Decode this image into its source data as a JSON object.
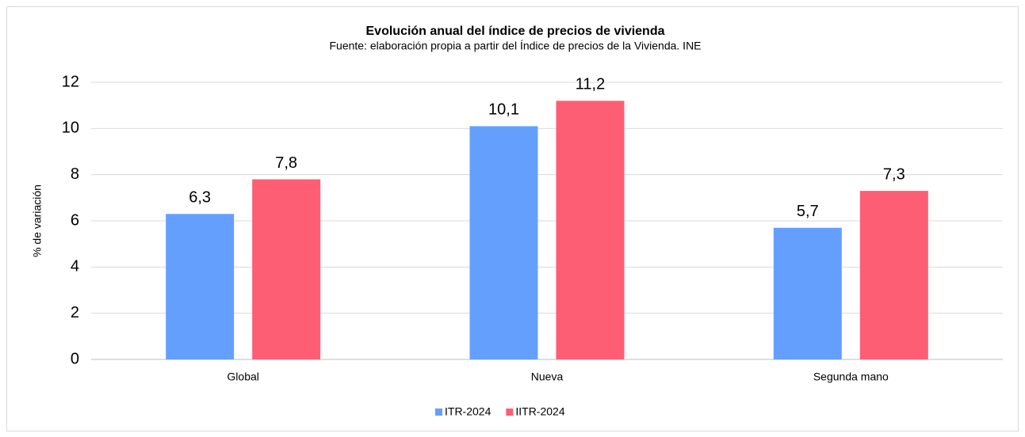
{
  "chart_data": {
    "type": "bar",
    "title": "Evolución anual del índice de precios de vivienda",
    "subtitle": "Fuente: elaboración propia a partir del Índice de precios de la Vivienda. INE",
    "y_label": "% de variación",
    "categories": [
      "Global",
      "Nueva",
      "Segunda mano"
    ],
    "series": [
      {
        "name": "ITR-2024",
        "color": "#659ffe",
        "values": [
          6.3,
          10.1,
          5.7
        ],
        "value_labels": [
          "6,3",
          "10,1",
          "5,7"
        ]
      },
      {
        "name": "IITR-2024",
        "color": "#fe5e74",
        "values": [
          7.8,
          11.2,
          7.3
        ],
        "value_labels": [
          "7,8",
          "11,2",
          "7,3"
        ]
      }
    ],
    "ylim": [
      0,
      12
    ],
    "yticks": [
      0,
      2,
      4,
      6,
      8,
      10,
      12
    ],
    "grid": true,
    "legend": "bottom"
  }
}
